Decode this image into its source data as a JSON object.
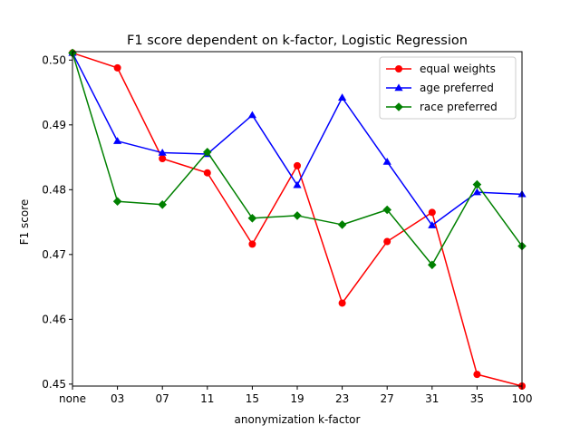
{
  "chart_data": {
    "type": "line",
    "title": "F1 score dependent on k-factor, Logistic Regression",
    "xlabel": "anonymization k-factor",
    "ylabel": "F1 score",
    "categories": [
      "none",
      "03",
      "07",
      "11",
      "15",
      "19",
      "23",
      "27",
      "31",
      "35",
      "100"
    ],
    "ylim": [
      0.4497,
      0.5013
    ],
    "yticks": [
      0.45,
      0.46,
      0.47,
      0.48,
      0.49,
      0.5
    ],
    "ytick_labels": [
      "0.45",
      "0.46",
      "0.47",
      "0.48",
      "0.49",
      "0.50"
    ],
    "grid": false,
    "legend_position": "top-right",
    "series": [
      {
        "name": "equal weights",
        "color": "#ff0000",
        "marker": "circle",
        "values": [
          0.5011,
          0.4988,
          0.4848,
          0.4826,
          0.4716,
          0.4837,
          0.4625,
          0.472,
          0.4765,
          0.4515,
          0.4497
        ]
      },
      {
        "name": "age preferred",
        "color": "#0000ff",
        "marker": "triangle",
        "values": [
          0.5011,
          0.4875,
          0.4857,
          0.4855,
          0.4915,
          0.4807,
          0.4942,
          0.4843,
          0.4745,
          0.4796,
          0.4793
        ]
      },
      {
        "name": "race preferred",
        "color": "#008000",
        "marker": "diamond",
        "values": [
          0.5011,
          0.4782,
          0.4777,
          0.4858,
          0.4756,
          0.476,
          0.4746,
          0.4769,
          0.4684,
          0.4808,
          0.4713
        ]
      }
    ]
  }
}
